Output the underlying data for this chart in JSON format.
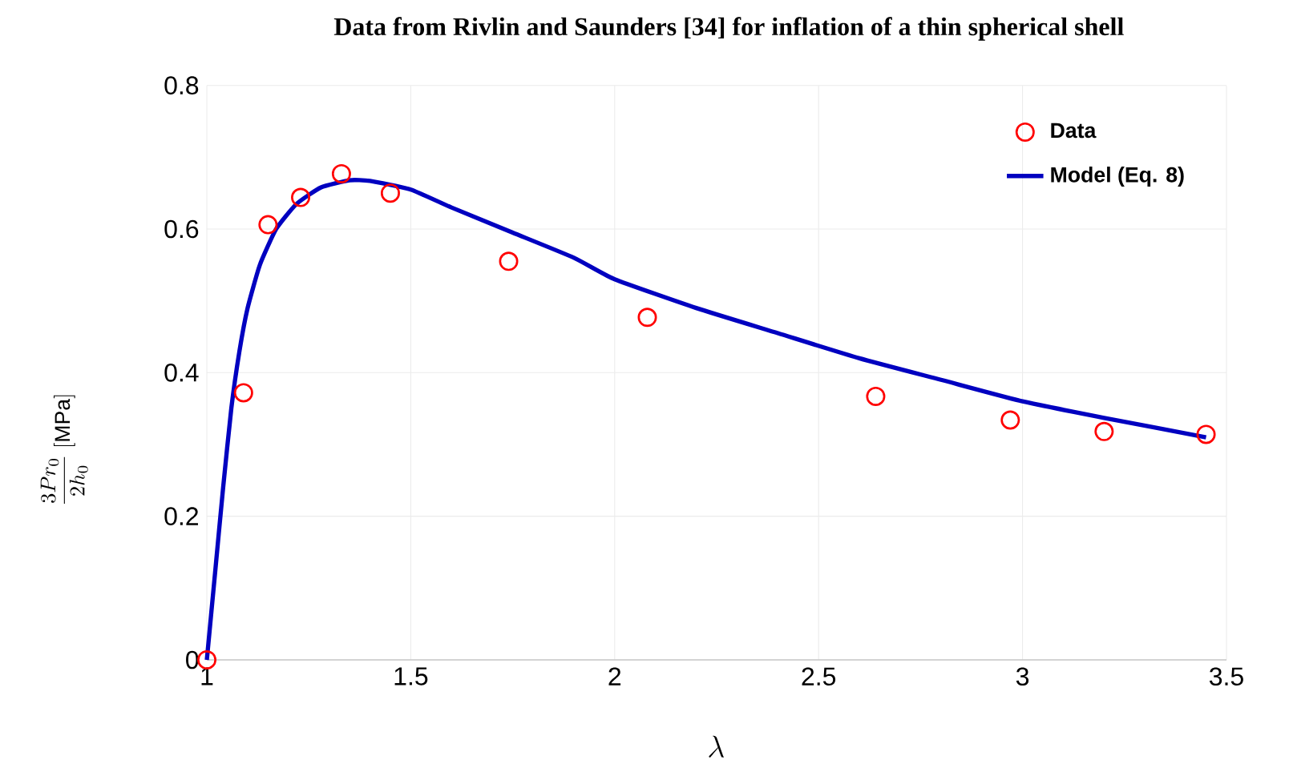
{
  "chart_data": {
    "type": "scatter",
    "title": "Data from Rivlin and Saunders [34] for inflation of a thin spherical shell",
    "xlabel": "\\lambda",
    "ylabel": "\\frac{3Pr_0}{2h_0}\\;[\\mathrm{MPa}]",
    "xlim": [
      1,
      3.5
    ],
    "xticks": [
      1,
      1.5,
      2,
      2.5,
      3,
      3.5
    ],
    "ylim": [
      0,
      0.8
    ],
    "yticks": [
      0,
      0.2,
      0.4,
      0.6,
      0.8
    ],
    "grid": true,
    "legend": "top right",
    "series": [
      {
        "name": "Data",
        "marker": "circle",
        "color": "#ff0000",
        "x": [
          1.0,
          1.09,
          1.15,
          1.23,
          1.33,
          1.45,
          1.74,
          2.08,
          2.64,
          2.97,
          3.2,
          3.45
        ],
        "values": [
          0,
          0.372,
          0.606,
          0.644,
          0.677,
          0.65,
          0.555,
          0.477,
          0.367,
          0.334,
          0.318,
          0.314
        ]
      },
      {
        "name": "Model (Eq. 8)",
        "type": "line",
        "color": "#0000c0",
        "x": [
          1.0,
          1.02,
          1.04,
          1.06,
          1.08,
          1.1,
          1.13,
          1.17,
          1.22,
          1.28,
          1.35,
          1.4,
          1.5,
          1.6,
          1.75,
          1.9,
          2.0,
          2.2,
          2.4,
          2.6,
          2.8,
          3.0,
          3.2,
          3.45
        ],
        "values": [
          0,
          0.12,
          0.24,
          0.35,
          0.43,
          0.49,
          0.55,
          0.6,
          0.635,
          0.658,
          0.668,
          0.667,
          0.655,
          0.63,
          0.595,
          0.56,
          0.53,
          0.49,
          0.455,
          0.42,
          0.39,
          0.36,
          0.337,
          0.31
        ]
      }
    ]
  }
}
